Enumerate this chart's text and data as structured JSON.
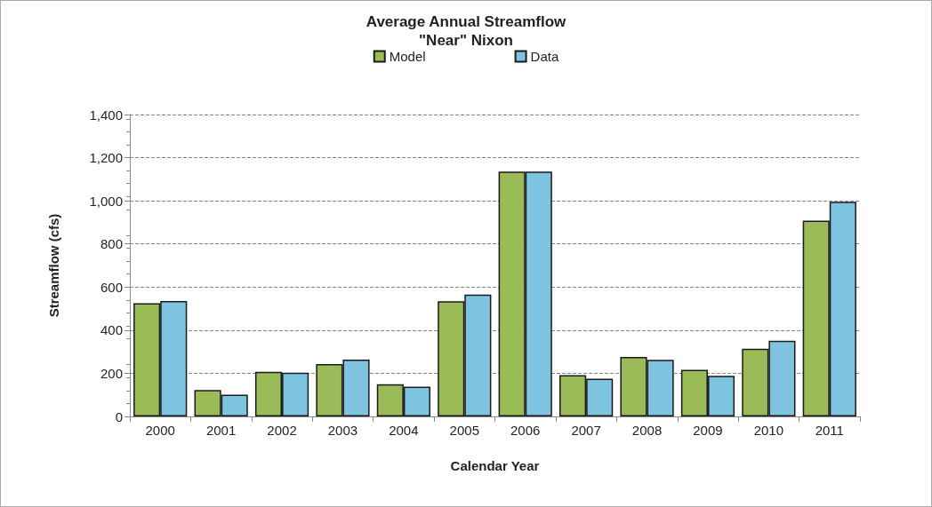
{
  "chart_data": {
    "type": "bar",
    "title": "Average Annual Streamflow\n\"Near\" Nixon",
    "xlabel": "Calendar Year",
    "ylabel": "Streamflow (cfs)",
    "categories": [
      "2000",
      "2001",
      "2002",
      "2003",
      "2004",
      "2005",
      "2006",
      "2007",
      "2008",
      "2009",
      "2010",
      "2011"
    ],
    "series": [
      {
        "name": "Model",
        "color": "#9bbb59",
        "values": [
          525,
          122,
          207,
          243,
          149,
          534,
          1135,
          191,
          276,
          216,
          314,
          908
        ]
      },
      {
        "name": "Data",
        "color": "#7ec4e0",
        "values": [
          535,
          101,
          203,
          264,
          138,
          565,
          1135,
          175,
          262,
          188,
          351,
          995
        ]
      }
    ],
    "ylim": [
      0,
      1400
    ],
    "yticks": [
      0,
      {
        "value": 200,
        "label": "200"
      },
      {
        "value": 400,
        "label": "400"
      },
      {
        "value": 600,
        "label": "600"
      },
      {
        "value": 800,
        "label": "800"
      },
      {
        "value": 1000,
        "label": "1,000"
      },
      {
        "value": 1200,
        "label": "1,200"
      },
      {
        "value": 1400,
        "label": "1,400"
      }
    ],
    "grid": "y",
    "legend": "top"
  }
}
